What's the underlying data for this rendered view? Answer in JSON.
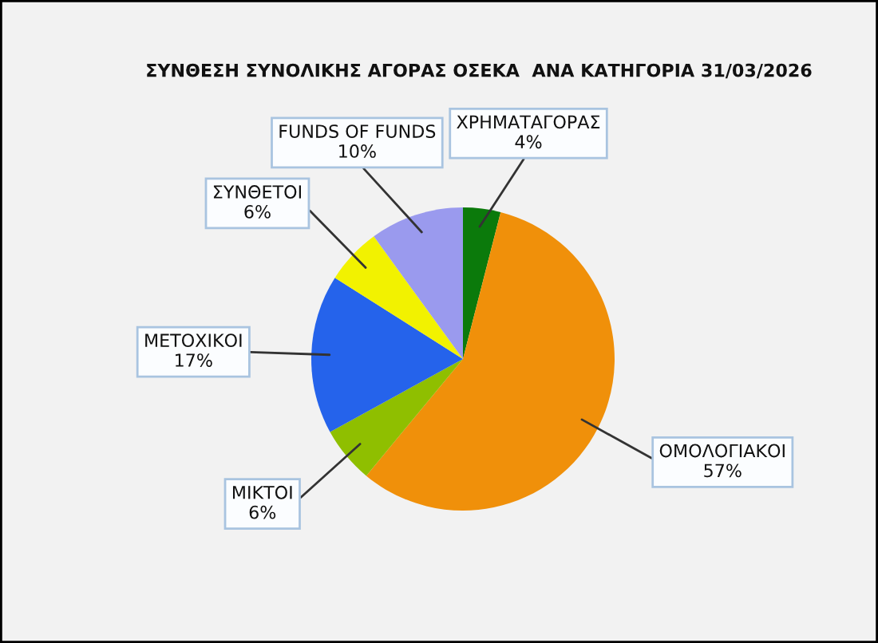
{
  "chart_data": {
    "type": "pie",
    "title": "ΣΥΝΘΕΣΗ ΣΥΝΟΛΙΚΗΣ ΑΓΟΡΑΣ ΟΣΕΚΑ  ΑΝΑ ΚΑΤΗΓΟΡΙΑ 31/03/2026",
    "categories": [
      "ΧΡΗΜΑΤΑΓΟΡΑΣ",
      "ΟΜΟΛΟΓΙΑΚΟΙ",
      "ΜΙΚΤΟΙ",
      "ΜΕΤΟΧΙΚΟΙ",
      "ΣΥΝΘΕΤΟΙ",
      "FUNDS OF FUNDS"
    ],
    "values": [
      4,
      57,
      6,
      17,
      6,
      10
    ],
    "value_labels": [
      "4%",
      "57%",
      "6%",
      "17%",
      "6%",
      "10%"
    ],
    "colors": [
      "#0b7a0b",
      "#f0900a",
      "#8fbf00",
      "#2563eb",
      "#f2f200",
      "#9a9aee"
    ],
    "legend": false
  }
}
